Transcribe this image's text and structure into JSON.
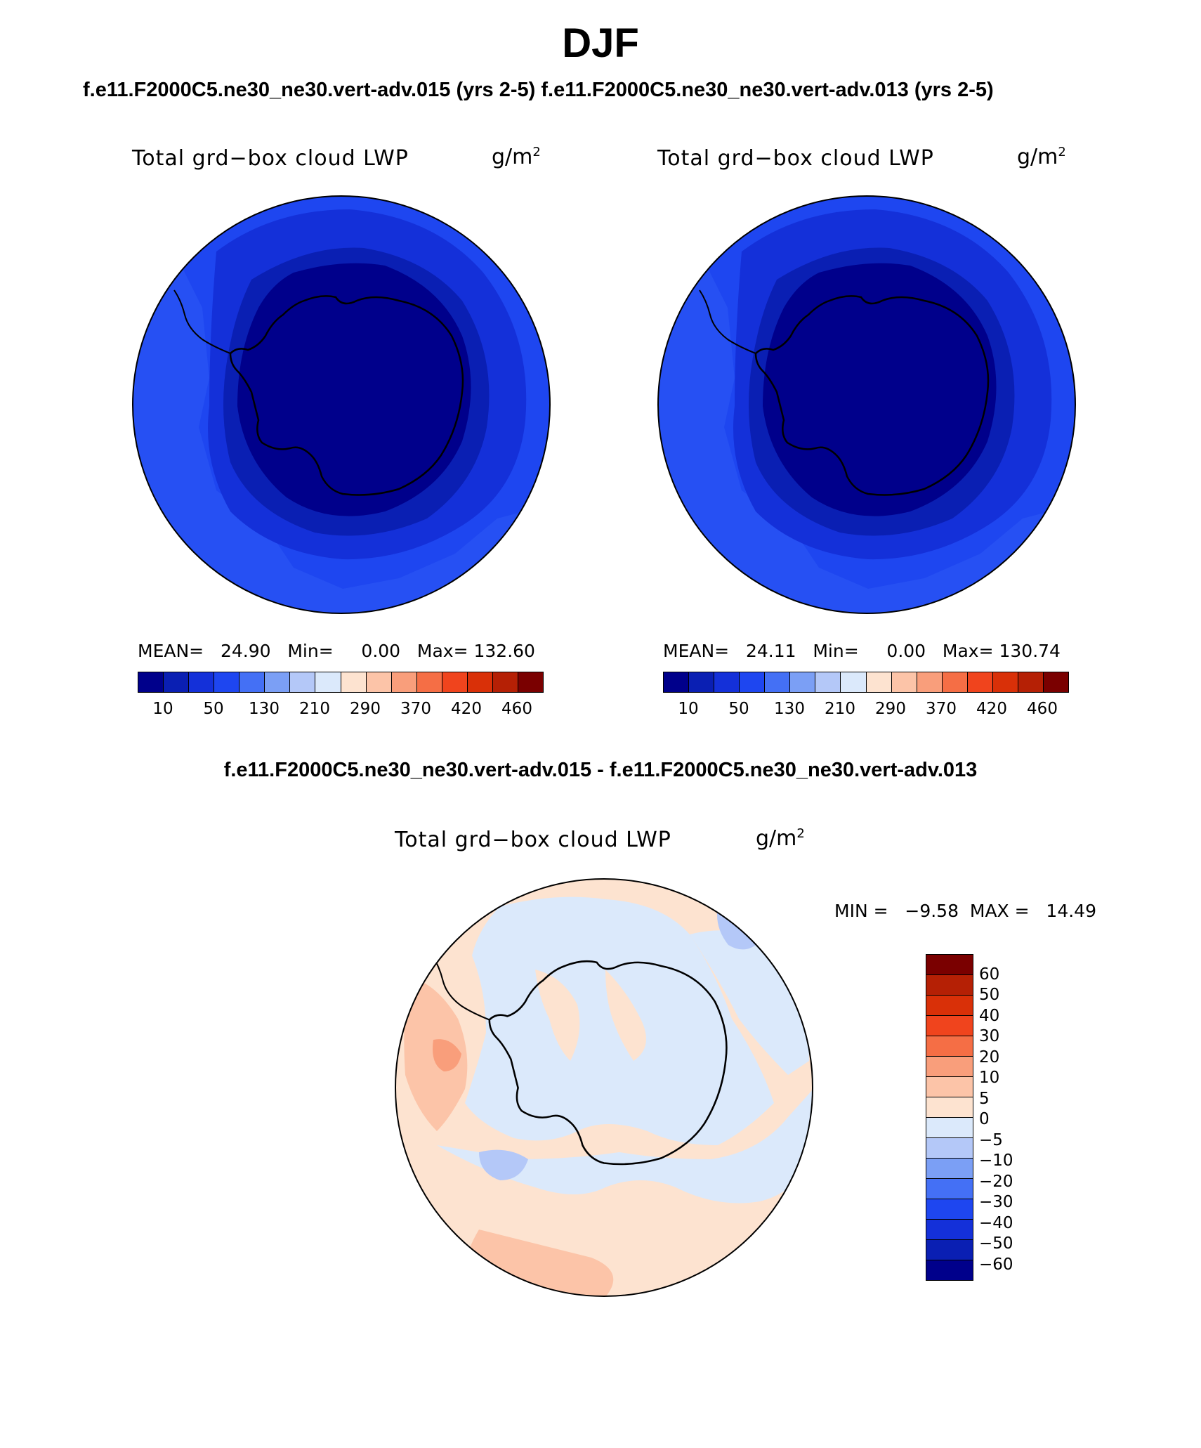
{
  "header": {
    "title": "DJF",
    "subtitle": "f.e11.F2000C5.ne30_ne30.vert-adv.015 (yrs 2-5) f.e11.F2000C5.ne30_ne30.vert-adv.013 (yrs 2-5)"
  },
  "panels": [
    {
      "title": "Total grd−box cloud LWP",
      "units": "g/m",
      "units_exp": "2",
      "stats": "MEAN=   24.90   Min=     0.00   Max= 132.60",
      "colorbar_labels": [
        "10",
        "50",
        "130",
        "210",
        "290",
        "370",
        "420",
        "460"
      ]
    },
    {
      "title": "Total grd−box cloud LWP",
      "units": "g/m",
      "units_exp": "2",
      "stats": "MEAN=   24.11   Min=     0.00   Max= 130.74",
      "colorbar_labels": [
        "10",
        "50",
        "130",
        "210",
        "290",
        "370",
        "420",
        "460"
      ]
    }
  ],
  "diff": {
    "subtitle": "f.e11.F2000C5.ne30_ne30.vert-adv.015 - f.e11.F2000C5.ne30_ne30.vert-adv.013",
    "title": "Total grd−box cloud LWP",
    "units": "g/m",
    "units_exp": "2",
    "minmax": "MIN =   −9.58  MAX =   14.49",
    "colorbar_labels": [
      "60",
      "50",
      "40",
      "30",
      "20",
      "10",
      "5",
      "0",
      "−5",
      "−10",
      "−20",
      "−30",
      "−40",
      "−50",
      "−60"
    ]
  },
  "colors": {
    "abs_scale": [
      "#00008b",
      "#0a1fb3",
      "#1430d9",
      "#1e46f0",
      "#4470f5",
      "#7b9ff5",
      "#b4c8f8",
      "#dbe9fb",
      "#fde3d0",
      "#fcc4a8",
      "#f99e7b",
      "#f56e45",
      "#f0441d",
      "#d93008",
      "#b52005",
      "#7a0000"
    ],
    "diff_scale": [
      "#7a0000",
      "#b52005",
      "#d93008",
      "#f0441d",
      "#f56e45",
      "#f99e7b",
      "#fcc4a8",
      "#fde3d0",
      "#dbe9fb",
      "#b4c8f8",
      "#7b9ff5",
      "#4470f5",
      "#1e46f0",
      "#1430d9",
      "#0a1fb3",
      "#00008b"
    ]
  }
}
